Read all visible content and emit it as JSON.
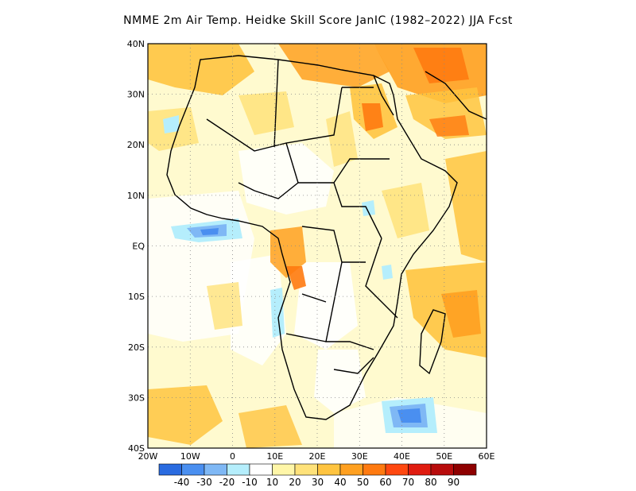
{
  "title": "NMME  2m Air Temp. Heidke Skill Score JanIC (1982–2022) JJA Fcst",
  "lat_ticks": [
    "40N",
    "30N",
    "20N",
    "10N",
    "EQ",
    "10S",
    "20S",
    "30S",
    "40S"
  ],
  "lon_ticks": [
    "20W",
    "10W",
    "0",
    "10E",
    "20E",
    "30E",
    "40E",
    "50E",
    "60E"
  ],
  "colorbar": {
    "colors": [
      "#2a6be0",
      "#4a8ff0",
      "#7fb8f5",
      "#b5eefc",
      "#ffffff",
      "#fff6a8",
      "#ffe27a",
      "#ffc440",
      "#ffa020",
      "#ff7a10",
      "#ff4810",
      "#e01c10",
      "#b80c0c",
      "#8e0000"
    ],
    "labels": [
      "-40",
      "-30",
      "-20",
      "-10",
      "10",
      "20",
      "30",
      "40",
      "50",
      "60",
      "70",
      "80",
      "90"
    ]
  },
  "map_data": {
    "lon_range": [
      -20,
      60
    ],
    "lat_range": [
      -40,
      40
    ]
  }
}
